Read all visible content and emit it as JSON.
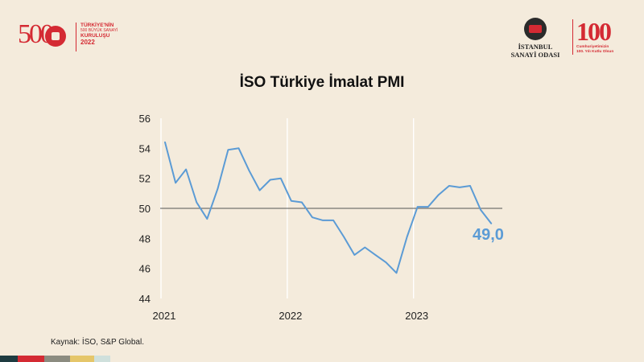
{
  "branding": {
    "left_logo": {
      "big_text": "500",
      "line1": "TÜRKİYE'NİN",
      "line2": "500 BÜYÜK SANAYİ",
      "line3": "KURULUŞU",
      "year": "2022"
    },
    "iso_logo": {
      "line1": "İSTANBUL",
      "line2": "SANAYİ ODASI"
    },
    "centennial_logo": {
      "number": "100",
      "line1": "Cumhuriyetimizin",
      "line2": "100. Yılı Kutlu Olsun"
    }
  },
  "footer": {
    "source": "Kaynak: İSO, S&P Global."
  },
  "colors": {
    "background": "#f4ebdc",
    "series": "#5b9bd5",
    "reference_line": "#555555",
    "brand_red": "#d42a33",
    "bottom_stripes": [
      "#1e3b40",
      "#d42a33",
      "#8c8c80",
      "#e5c66a",
      "#cfe0dc"
    ]
  },
  "chart_data": {
    "type": "line",
    "title": "İSO Türkiye İmalat PMI",
    "xlabel": "",
    "ylabel": "",
    "ylim": [
      44,
      56
    ],
    "yticks": [
      "44",
      "46",
      "48",
      "50",
      "52",
      "54",
      "56"
    ],
    "xticks": [
      {
        "label": "2021",
        "index": 0
      },
      {
        "label": "2022",
        "index": 12
      },
      {
        "label": "2023",
        "index": 24
      }
    ],
    "reference_line": 50,
    "grid": "vertical year lines",
    "end_label": "49,0",
    "series": [
      {
        "x": [
          "2021-01",
          "2021-02",
          "2021-03",
          "2021-04",
          "2021-05",
          "2021-06",
          "2021-07",
          "2021-08",
          "2021-09",
          "2021-10",
          "2021-11",
          "2021-12",
          "2022-01",
          "2022-02",
          "2022-03",
          "2022-04",
          "2022-05",
          "2022-06",
          "2022-07",
          "2022-08",
          "2022-09",
          "2022-10",
          "2022-11",
          "2022-12",
          "2023-01",
          "2023-02",
          "2023-03",
          "2023-04",
          "2023-05",
          "2023-06",
          "2023-07",
          "2023-08"
        ],
        "values": [
          54.4,
          51.7,
          52.6,
          50.4,
          49.3,
          51.3,
          53.9,
          54.0,
          52.5,
          51.2,
          51.9,
          52.0,
          50.5,
          50.4,
          49.4,
          49.2,
          49.2,
          48.1,
          46.9,
          47.4,
          46.9,
          46.4,
          45.7,
          48.1,
          50.1,
          50.1,
          50.9,
          51.5,
          51.4,
          51.5,
          49.9,
          49.0
        ]
      }
    ]
  }
}
